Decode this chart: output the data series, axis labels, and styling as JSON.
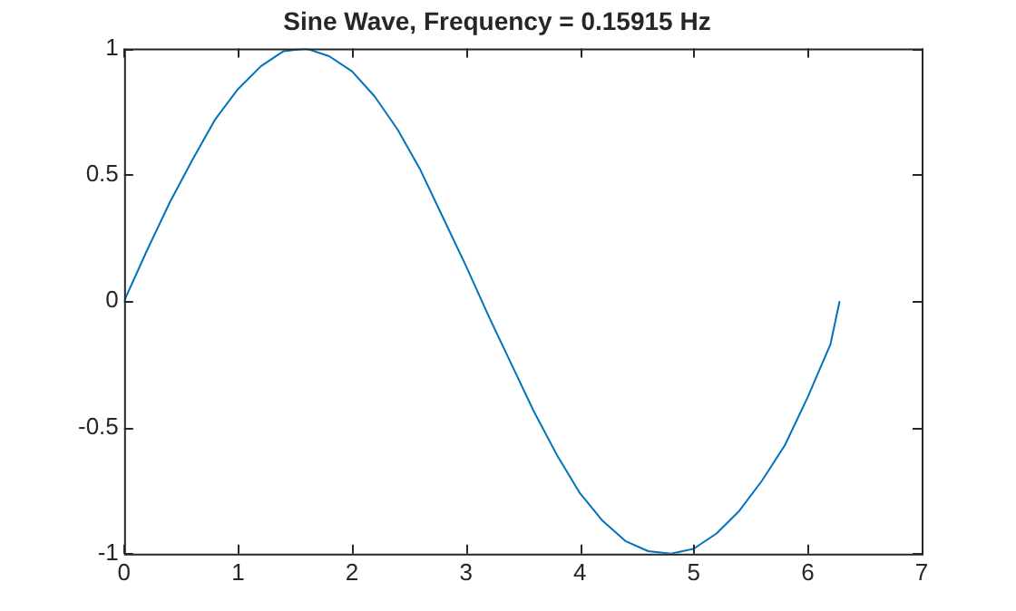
{
  "chart_data": {
    "type": "line",
    "title": "Sine Wave, Frequency = 0.15915 Hz",
    "x": [
      0,
      0.2,
      0.4,
      0.6,
      0.8,
      1.0,
      1.2,
      1.4,
      1.6,
      1.8,
      2.0,
      2.2,
      2.4,
      2.6,
      2.8,
      3.0,
      3.2,
      3.4,
      3.6,
      3.8,
      4.0,
      4.2,
      4.4,
      4.6,
      4.8,
      5.0,
      5.2,
      5.4,
      5.6,
      5.8,
      6.0,
      6.2,
      6.28
    ],
    "series": [
      {
        "color": "#0072bd",
        "values": [
          0,
          0.2,
          0.39,
          0.56,
          0.72,
          0.84,
          0.93,
          0.99,
          1.0,
          0.97,
          0.91,
          0.81,
          0.68,
          0.52,
          0.33,
          0.14,
          -0.06,
          -0.25,
          -0.44,
          -0.61,
          -0.76,
          -0.87,
          -0.95,
          -0.99,
          -1.0,
          -0.98,
          -0.92,
          -0.83,
          -0.71,
          -0.57,
          -0.38,
          -0.17,
          0
        ]
      }
    ],
    "xlim": [
      0,
      7
    ],
    "xticks": [
      0,
      1,
      2,
      3,
      4,
      5,
      6,
      7
    ],
    "ylim": [
      -1,
      1
    ],
    "yticks": [
      -1,
      -0.5,
      0,
      0.5,
      1
    ],
    "grid": false,
    "legend": false,
    "marker": "none",
    "line_style": "solid"
  }
}
